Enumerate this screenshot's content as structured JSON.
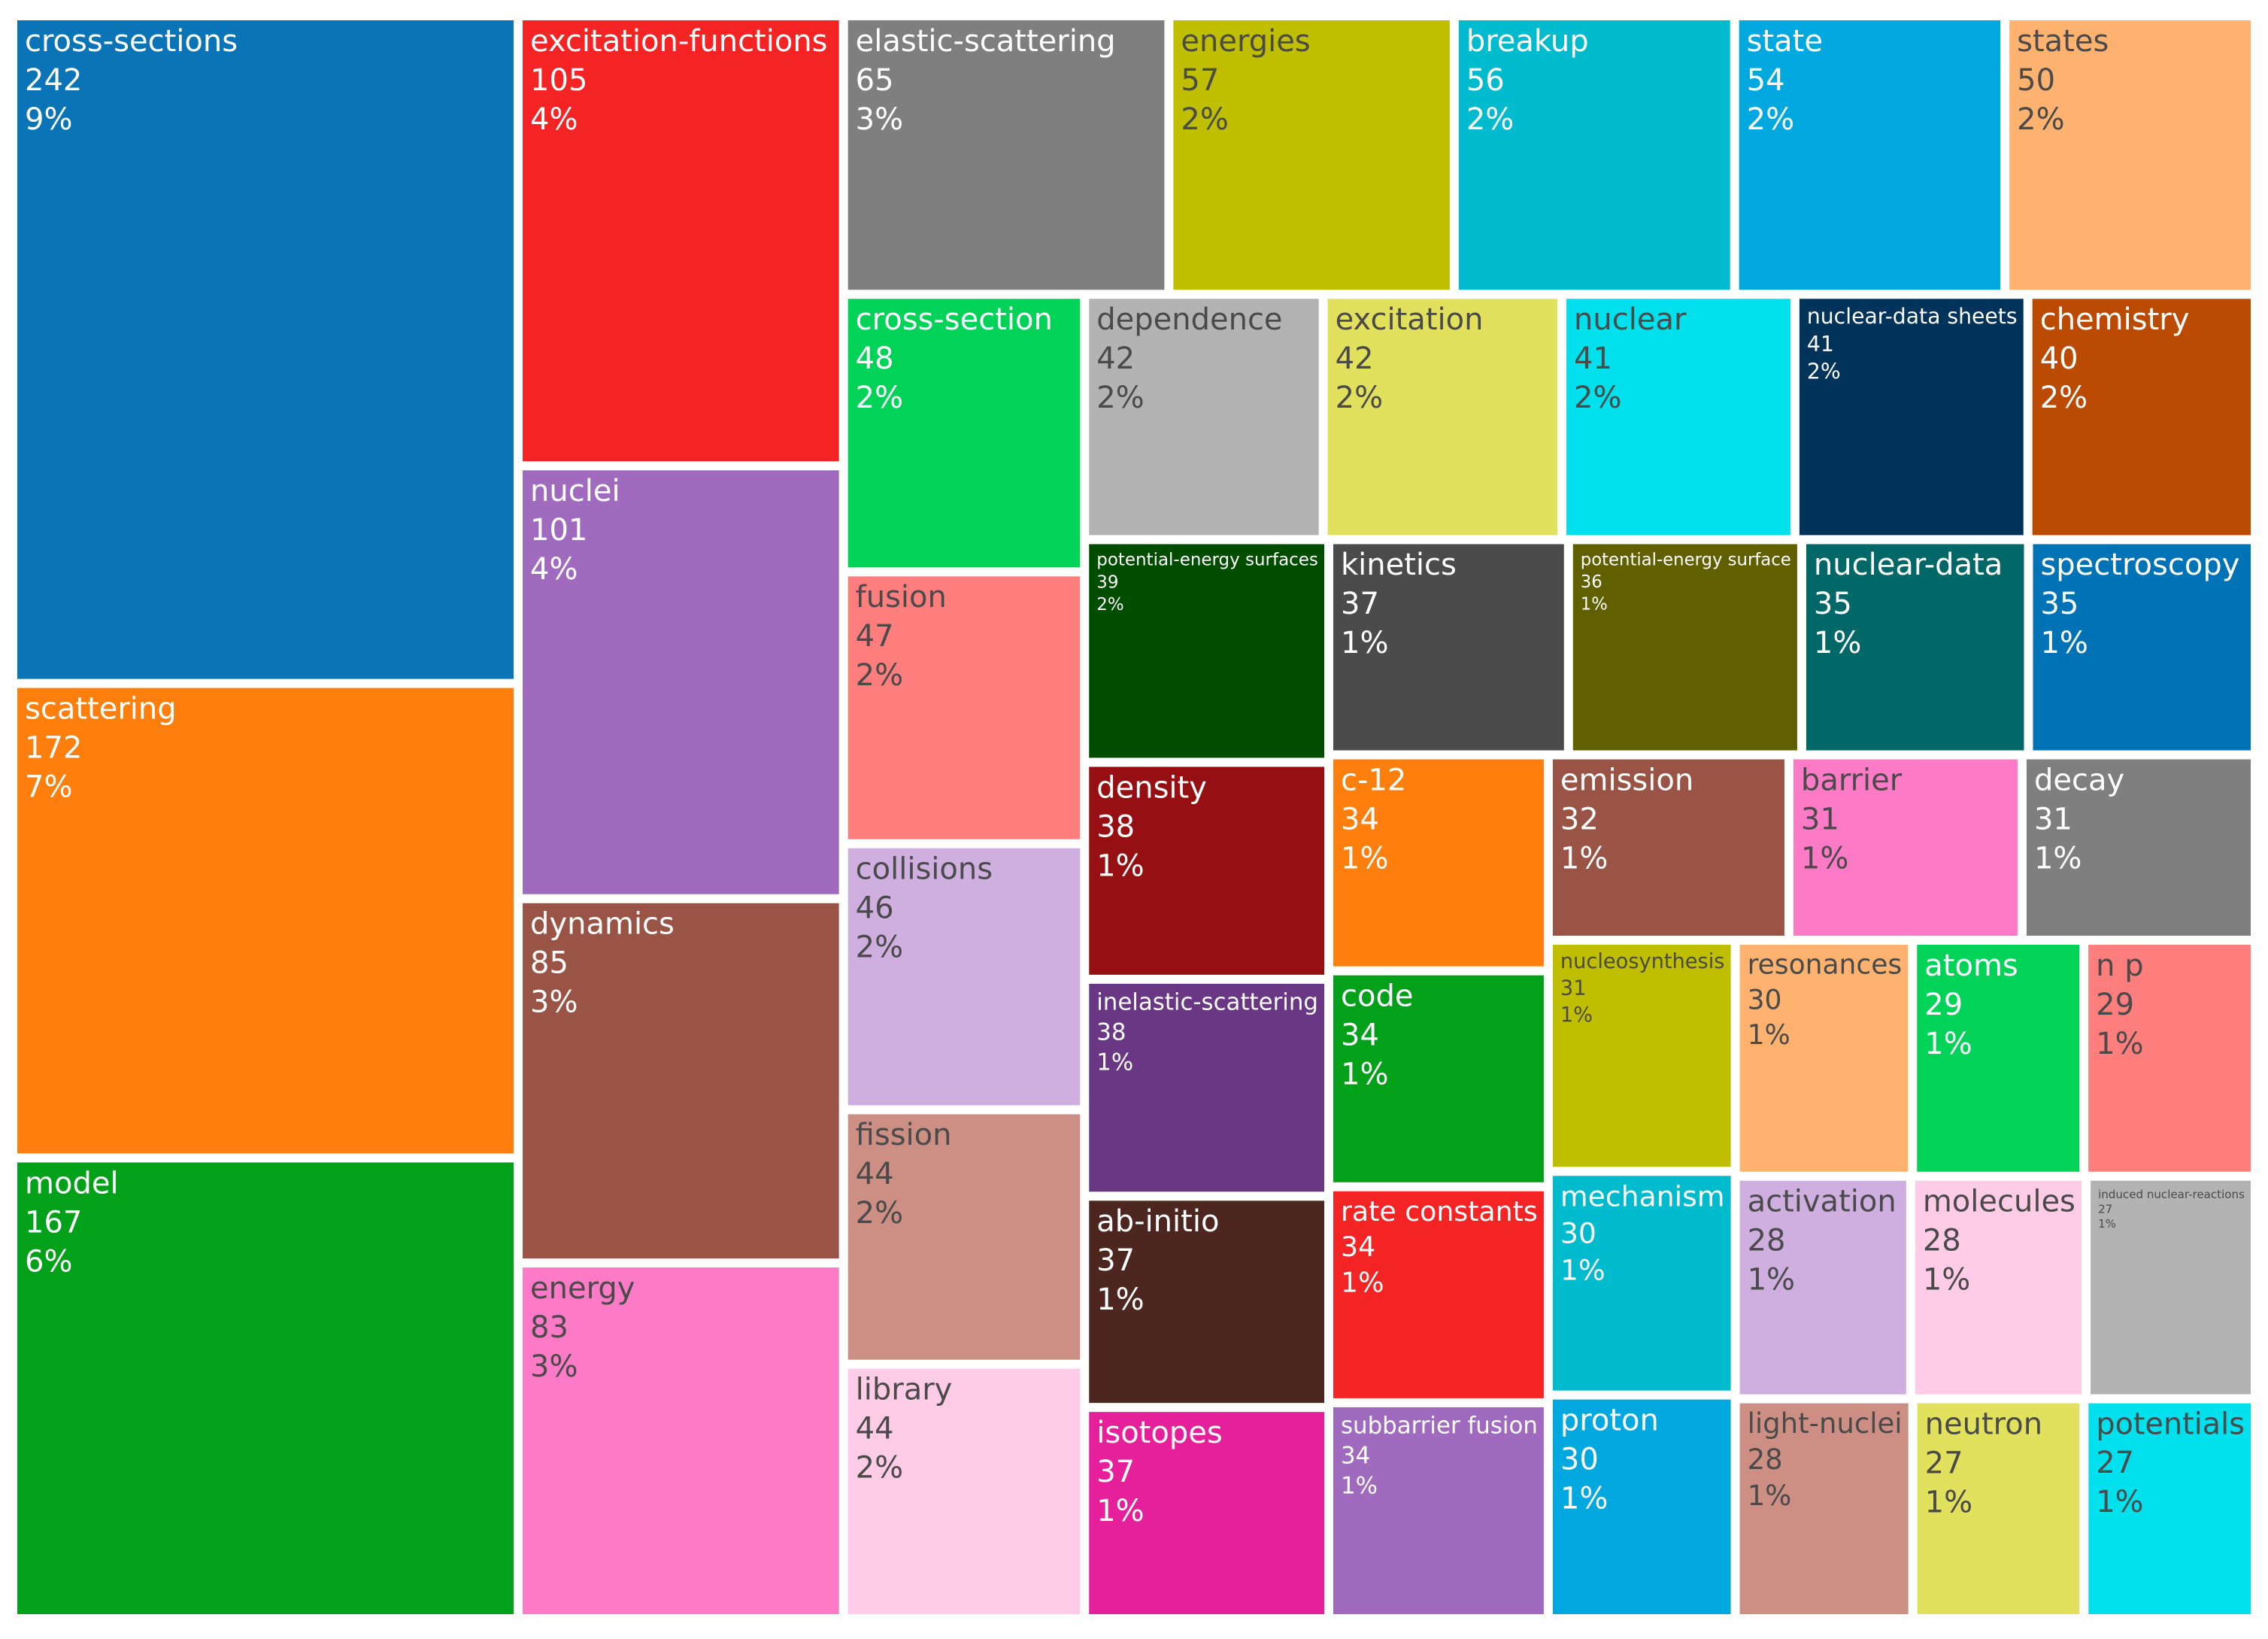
{
  "chart_data": {
    "type": "treemap",
    "categories": [
      "cross-sections",
      "scattering",
      "model",
      "excitation-functions",
      "nuclei",
      "dynamics",
      "energy",
      "elastic-scattering",
      "energies",
      "breakup",
      "state",
      "states",
      "cross-section",
      "fusion",
      "collisions",
      "fission",
      "library",
      "dependence",
      "excitation",
      "nuclear",
      "nuclear-data sheets",
      "chemistry",
      "potential-energy surfaces",
      "density",
      "inelastic-scattering",
      "kinetics",
      "ab-initio",
      "isotopes",
      "potential-energy surface",
      "nuclear-data",
      "spectroscopy",
      "c-12",
      "code",
      "rate constants",
      "subbarrier fusion",
      "emission",
      "barrier",
      "decay",
      "nucleosynthesis",
      "mechanism",
      "proton",
      "resonances",
      "activation",
      "light-nuclei",
      "molecules",
      "atoms",
      "n p",
      "neutron",
      "potentials",
      "induced nuclear-reactions"
    ],
    "values": [
      242,
      172,
      167,
      105,
      101,
      85,
      83,
      65,
      57,
      56,
      54,
      50,
      48,
      47,
      46,
      44,
      44,
      42,
      42,
      41,
      41,
      40,
      39,
      38,
      38,
      37,
      37,
      37,
      36,
      35,
      35,
      34,
      34,
      34,
      34,
      32,
      31,
      31,
      31,
      30,
      30,
      30,
      28,
      28,
      28,
      29,
      29,
      27,
      27,
      27
    ],
    "percent_labels": [
      "9%",
      "7%",
      "6%",
      "4%",
      "4%",
      "3%",
      "3%",
      "3%",
      "2%",
      "2%",
      "2%",
      "2%",
      "2%",
      "2%",
      "2%",
      "2%",
      "2%",
      "2%",
      "2%",
      "2%",
      "2%",
      "2%",
      "2%",
      "1%",
      "1%",
      "1%",
      "1%",
      "1%",
      "1%",
      "1%",
      "1%",
      "1%",
      "1%",
      "1%",
      "1%",
      "1%",
      "1%",
      "1%",
      "1%",
      "1%",
      "1%",
      "1%",
      "1%",
      "1%",
      "1%",
      "1%",
      "1%",
      "1%",
      "1%",
      "1%"
    ],
    "colors": [
      "#0a74b6",
      "#fe7f0e",
      "#03a01a",
      "#f52424",
      "#a06abf",
      "#9a5446",
      "#fd7ac6",
      "#7f7f7f",
      "#bfbf00",
      "#00bbcd",
      "#00a8e0",
      "#feb270",
      "#00d357",
      "#fe7e7e",
      "#ceafe0",
      "#cd8f84",
      "#fecce6",
      "#b3b3b3",
      "#e1e15e",
      "#00e0ed",
      "#02335a",
      "#bb4a03",
      "#004d00",
      "#960f12",
      "#6a3785",
      "#4b4b4b",
      "#4e2620",
      "#e5209a",
      "#606000",
      "#016767",
      "#0072b6",
      "#fe7f0e",
      "#03a01a",
      "#f52424",
      "#a06abf",
      "#9a5446",
      "#fd7ac6",
      "#7f7f7f",
      "#bfbf00",
      "#00bbcd",
      "#00a8e0",
      "#feb270",
      "#ceafe0",
      "#cd8f84",
      "#fecce6",
      "#00d357",
      "#fe7e7e",
      "#e1e15e",
      "#00e0ed",
      "#b3b3b3"
    ]
  }
}
